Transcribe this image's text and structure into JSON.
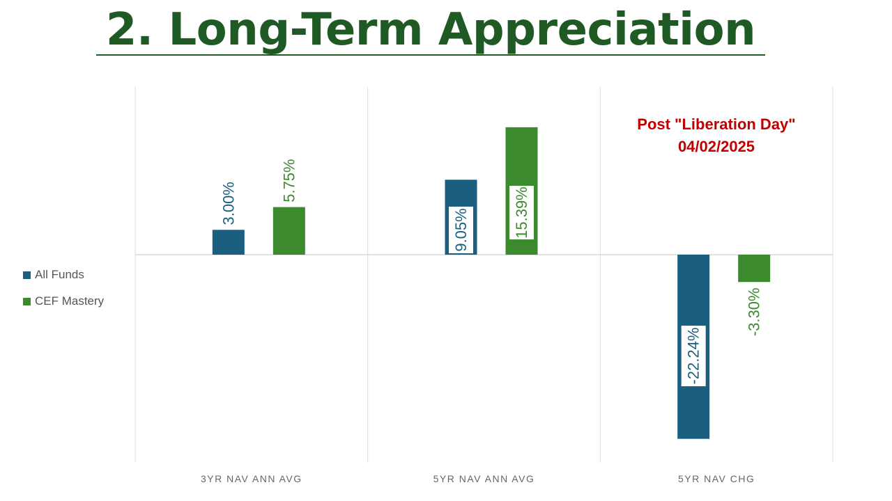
{
  "title": "2. Long-Term Appreciation",
  "annotation": {
    "line1": "Post \"Liberation Day\"",
    "line2": "04/02/2025"
  },
  "colors": {
    "all_funds": "#1a5e80",
    "cef_mastery": "#3c8a2e",
    "title": "#1f5a25",
    "annotation": "#c00000"
  },
  "chart_data": {
    "type": "bar",
    "categories": [
      "3YR NAV ANN AVG",
      "5YR NAV ANN AVG",
      "5YR NAV CHG"
    ],
    "series": [
      {
        "name": "All Funds",
        "values": [
          3.0,
          9.05,
          -22.24
        ],
        "labels": [
          "3.00%",
          "9.05%",
          "-22.24%"
        ]
      },
      {
        "name": "CEF Mastery",
        "values": [
          5.75,
          15.39,
          -3.3
        ],
        "labels": [
          "5.75%",
          "15.39%",
          "-3.30%"
        ]
      }
    ],
    "ylim": [
      -25,
      17
    ],
    "legend": "left",
    "grid": false
  }
}
